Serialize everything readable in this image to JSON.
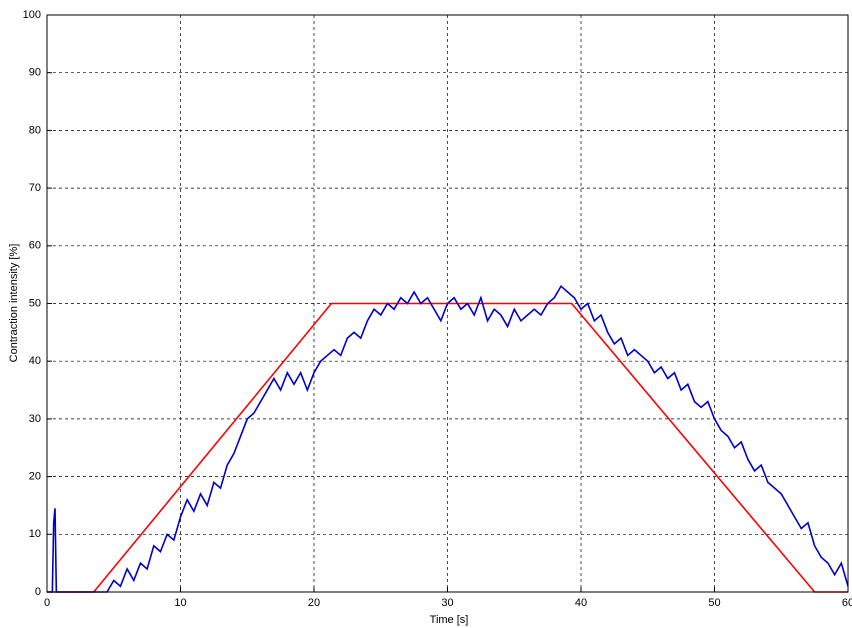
{
  "chart_data": {
    "type": "line",
    "xlabel": "Time [s]",
    "ylabel": "Contraction intensity [%]",
    "xlim": [
      0,
      60
    ],
    "ylim": [
      0,
      100
    ],
    "xticks": [
      0,
      10,
      20,
      30,
      40,
      50,
      60
    ],
    "yticks": [
      0,
      10,
      20,
      30,
      40,
      50,
      60,
      70,
      80,
      90,
      100
    ],
    "grid": true,
    "series": [
      {
        "color": "#ff0000",
        "x": [
          0,
          3.5,
          21.3,
          39.3,
          57.5,
          60
        ],
        "values": [
          0,
          0,
          50,
          50,
          0,
          0
        ]
      },
      {
        "color": "#0000cc",
        "x": [
          0,
          0.4,
          0.5,
          0.6,
          0.7,
          4.5,
          5,
          5.5,
          6,
          6.5,
          7,
          7.5,
          8,
          8.5,
          9,
          9.5,
          10,
          10.5,
          11,
          11.5,
          12,
          12.5,
          13,
          13.5,
          14,
          14.5,
          15,
          15.5,
          16,
          16.5,
          17,
          17.5,
          18,
          18.5,
          19,
          19.5,
          20,
          20.5,
          21,
          21.5,
          22,
          22.5,
          23,
          23.5,
          24,
          24.5,
          25,
          25.5,
          26,
          26.5,
          27,
          27.5,
          28,
          28.5,
          29,
          29.5,
          30,
          30.5,
          31,
          31.5,
          32,
          32.5,
          33,
          33.5,
          34,
          34.5,
          35,
          35.5,
          36,
          36.5,
          37,
          37.5,
          38,
          38.5,
          39,
          39.5,
          40,
          40.5,
          41,
          41.5,
          42,
          42.5,
          43,
          43.5,
          44,
          44.5,
          45,
          45.5,
          46,
          46.5,
          47,
          47.5,
          48,
          48.5,
          49,
          49.5,
          50,
          50.5,
          51,
          51.5,
          52,
          52.5,
          53,
          53.5,
          54,
          54.5,
          55,
          55.5,
          56,
          56.5,
          57,
          57.5,
          58,
          58.5,
          59,
          59.5,
          60
        ],
        "values": [
          0,
          0,
          12,
          14.5,
          0,
          0,
          2,
          1,
          4,
          2,
          5,
          4,
          8,
          7,
          10,
          9,
          13,
          16,
          14,
          17,
          15,
          19,
          18,
          22,
          24,
          27,
          30,
          31,
          33,
          35,
          37,
          35,
          38,
          36,
          38,
          35,
          38,
          40,
          41,
          42,
          41,
          44,
          45,
          44,
          47,
          49,
          48,
          50,
          49,
          51,
          50,
          52,
          50,
          51,
          49,
          47,
          50,
          51,
          49,
          50,
          48,
          51,
          47,
          49,
          48,
          46,
          49,
          47,
          48,
          49,
          48,
          50,
          51,
          53,
          52,
          51,
          49,
          50,
          47,
          48,
          45,
          43,
          44,
          41,
          42,
          41,
          40,
          38,
          39,
          37,
          38,
          35,
          36,
          33,
          32,
          33,
          30,
          28,
          27,
          25,
          26,
          23,
          21,
          22,
          19,
          18,
          17,
          15,
          13,
          11,
          12,
          8,
          6,
          5,
          3,
          5,
          1
        ]
      }
    ]
  }
}
